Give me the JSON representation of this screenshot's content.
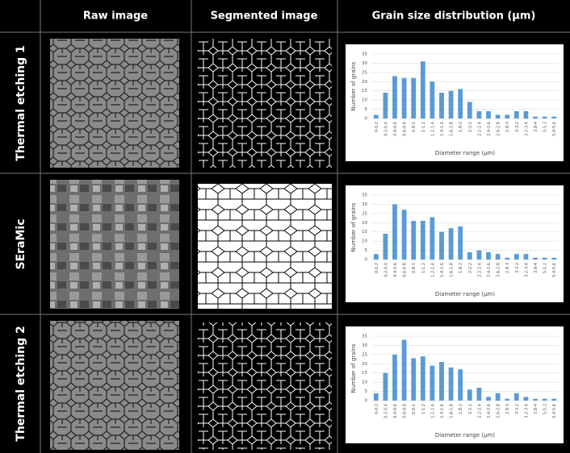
{
  "header": [
    "Raw image",
    "Segmented image",
    "Grain size distribution (μm)"
  ],
  "rows": [
    "Thermal etching 1",
    "SEraMic",
    "Thermal etching 2"
  ],
  "chart_data": [
    {
      "type": "bar",
      "y_label": "Number of grains",
      "x_label": "Diameter range (μm)",
      "color": "#5b9bd5",
      "categories": [
        "0-0.2",
        "0.2-0.4",
        "0.4-0.6",
        "0.6-0.8",
        "0.8-1",
        "1-1.2",
        "1.2-1.4",
        "1.4-1.6",
        "1.6-1.8",
        "1.8-2",
        "2-2.2",
        "2.2-2.4",
        "2.4-2.6",
        "2.6-2.8",
        "2.8-3",
        "3-3.2",
        "3.2-3.4",
        "3.8-4",
        "5-5.2",
        "5.4-5.6"
      ],
      "values": [
        2,
        14,
        23,
        22,
        22,
        31,
        20,
        14,
        15,
        16,
        9,
        4,
        4,
        2,
        2,
        4,
        4,
        1,
        1,
        1
      ],
      "ylim": [
        0,
        35
      ],
      "yticks": [
        0,
        5,
        10,
        15,
        20,
        25,
        30,
        35
      ],
      "grid": true
    },
    {
      "type": "bar",
      "y_label": "Number of grains",
      "x_label": "Diameter range (μm)",
      "color": "#5b9bd5",
      "categories": [
        "0-0.2",
        "0.2-0.4",
        "0.4-0.6",
        "0.6-0.8",
        "0.8-1",
        "1-1.2",
        "1.2-1.4",
        "1.4-1.6",
        "1.6-1.8",
        "1.8-2",
        "2-2.2",
        "2.2-2.4",
        "2.4-2.6",
        "2.6-2.8",
        "2.8-3",
        "3-3.2",
        "3.2-3.4",
        "3.8-4",
        "5-5.2",
        "5.4-5.6"
      ],
      "values": [
        3,
        14,
        30,
        27,
        21,
        21,
        23,
        15,
        17,
        18,
        4,
        5,
        4,
        3,
        1,
        3,
        3,
        1,
        1,
        1
      ],
      "ylim": [
        0,
        35
      ],
      "yticks": [
        0,
        5,
        10,
        15,
        20,
        25,
        30,
        35
      ],
      "grid": true
    },
    {
      "type": "bar",
      "y_label": "Number of grains",
      "x_label": "Diameter range (μm)",
      "color": "#5b9bd5",
      "categories": [
        "0-0.2",
        "0.2-0.4",
        "0.4-0.6",
        "0.6-0.8",
        "0.8-1",
        "1-1.2",
        "1.2-1.4",
        "1.4-1.6",
        "1.6-1.8",
        "1.8-2",
        "2-2.2",
        "2.2-2.4",
        "2.4-2.6",
        "2.6-2.8",
        "2.8-3",
        "3-3.2",
        "3.2-3.4",
        "3.8-4",
        "5-5.2",
        "5.4-5.6"
      ],
      "values": [
        4,
        15,
        25,
        33,
        23,
        24,
        19,
        21,
        18,
        17,
        6,
        7,
        2,
        4,
        1,
        4,
        2,
        1,
        1,
        1
      ],
      "ylim": [
        0,
        35
      ],
      "yticks": [
        0,
        5,
        10,
        15,
        20,
        25,
        30,
        35
      ],
      "grid": true
    }
  ]
}
